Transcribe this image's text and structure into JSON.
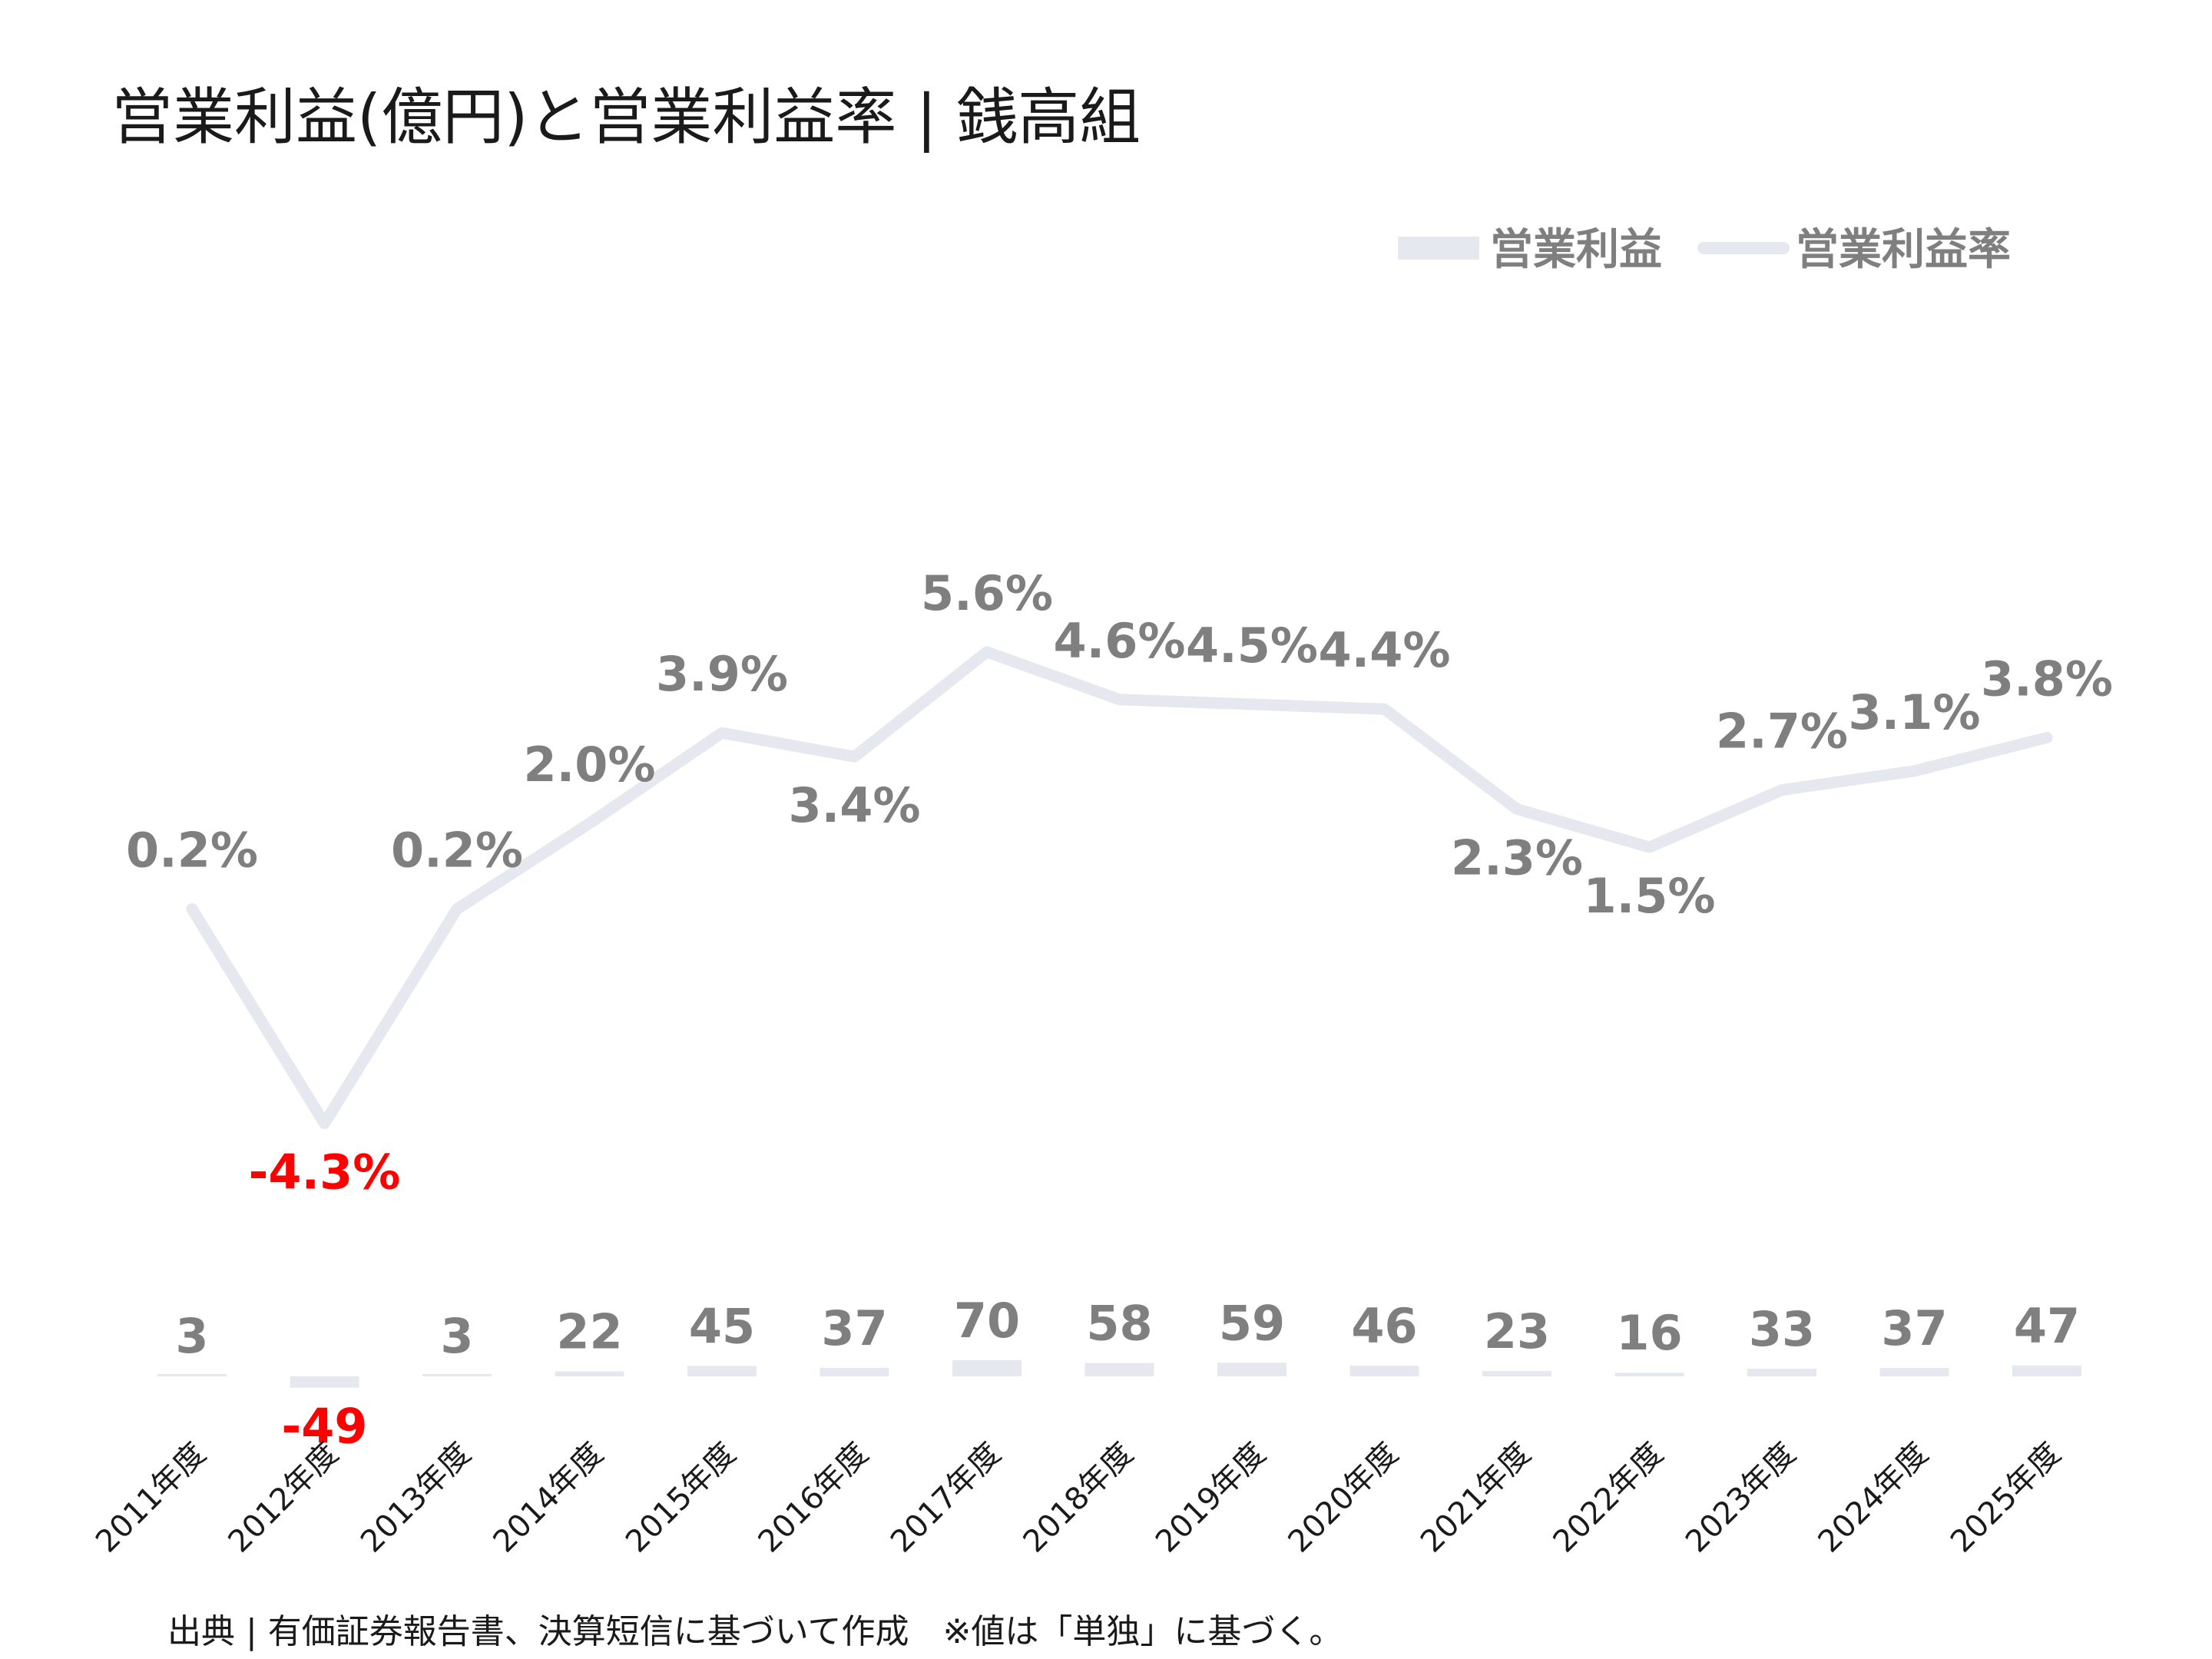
{
  "title": "営業利益(億円)と営業利益率 | 銭高組",
  "source": "出典 | 有価証券報告書、決算短信に基づいて作成　※値は「単独」に基づく。",
  "colors": {
    "bar": "#e5e8ee",
    "line": "#e5e8ee",
    "label": "#7f7f7f",
    "negative": "#ff0000",
    "text": "#1a1a1a"
  },
  "chart_data": {
    "type": "bar",
    "categories": [
      "2011年度",
      "2012年度",
      "2013年度",
      "2014年度",
      "2015年度",
      "2016年度",
      "2017年度",
      "2018年度",
      "2019年度",
      "2020年度",
      "2021年度",
      "2022年度",
      "2023年度",
      "2024年度",
      "2025年度"
    ],
    "series": [
      {
        "name": "営業利益",
        "type": "bar",
        "values": [
          3,
          -49,
          3,
          22,
          45,
          37,
          70,
          58,
          59,
          46,
          23,
          16,
          33,
          37,
          47
        ],
        "labels": [
          "3",
          "-49",
          "3",
          "22",
          "45",
          "37",
          "70",
          "58",
          "59",
          "46",
          "23",
          "16",
          "33",
          "37",
          "47"
        ]
      },
      {
        "name": "営業利益率",
        "type": "line",
        "values": [
          0.2,
          -4.3,
          0.2,
          2.0,
          3.9,
          3.4,
          5.6,
          4.6,
          4.5,
          4.4,
          2.3,
          1.5,
          2.7,
          3.1,
          3.8
        ],
        "labels": [
          "0.2%",
          "-4.3%",
          "0.2%",
          "2.0%",
          "3.9%",
          "3.4%",
          "5.6%",
          "4.6%",
          "4.5%",
          "4.4%",
          "2.3%",
          "1.5%",
          "2.7%",
          "3.1%",
          "3.8%"
        ]
      }
    ],
    "legend": {
      "position": "top-right",
      "entries": [
        "営業利益",
        "営業利益率"
      ]
    },
    "grid": false
  }
}
